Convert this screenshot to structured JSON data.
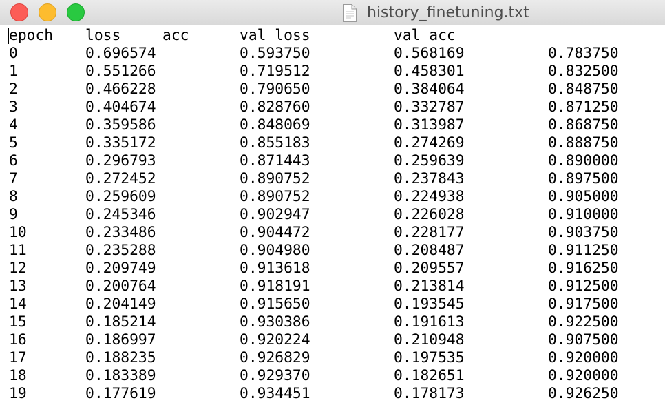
{
  "window": {
    "title": "history_finetuning.txt"
  },
  "table": {
    "headers": {
      "epoch": "epoch",
      "loss": "loss",
      "acc": "acc",
      "val_loss": "val_loss",
      "val_acc": "val_acc"
    },
    "rows": [
      [
        "0",
        "0.696574",
        "0.593750",
        "0.568169",
        "0.783750"
      ],
      [
        "1",
        "0.551266",
        "0.719512",
        "0.458301",
        "0.832500"
      ],
      [
        "2",
        "0.466228",
        "0.790650",
        "0.384064",
        "0.848750"
      ],
      [
        "3",
        "0.404674",
        "0.828760",
        "0.332787",
        "0.871250"
      ],
      [
        "4",
        "0.359586",
        "0.848069",
        "0.313987",
        "0.868750"
      ],
      [
        "5",
        "0.335172",
        "0.855183",
        "0.274269",
        "0.888750"
      ],
      [
        "6",
        "0.296793",
        "0.871443",
        "0.259639",
        "0.890000"
      ],
      [
        "7",
        "0.272452",
        "0.890752",
        "0.237843",
        "0.897500"
      ],
      [
        "8",
        "0.259609",
        "0.890752",
        "0.224938",
        "0.905000"
      ],
      [
        "9",
        "0.245346",
        "0.902947",
        "0.226028",
        "0.910000"
      ],
      [
        "10",
        "0.233486",
        "0.904472",
        "0.228177",
        "0.903750"
      ],
      [
        "11",
        "0.235288",
        "0.904980",
        "0.208487",
        "0.911250"
      ],
      [
        "12",
        "0.209749",
        "0.913618",
        "0.209557",
        "0.916250"
      ],
      [
        "13",
        "0.200764",
        "0.918191",
        "0.213814",
        "0.912500"
      ],
      [
        "14",
        "0.204149",
        "0.915650",
        "0.193545",
        "0.917500"
      ],
      [
        "15",
        "0.185214",
        "0.930386",
        "0.191613",
        "0.922500"
      ],
      [
        "16",
        "0.186997",
        "0.920224",
        "0.210948",
        "0.907500"
      ],
      [
        "17",
        "0.188235",
        "0.926829",
        "0.197535",
        "0.920000"
      ],
      [
        "18",
        "0.183389",
        "0.929370",
        "0.182651",
        "0.920000"
      ],
      [
        "19",
        "0.177619",
        "0.934451",
        "0.178173",
        "0.926250"
      ]
    ]
  },
  "icons": {
    "close": "close-button",
    "minimize": "minimize-button",
    "zoom": "zoom-button",
    "document": "document-icon"
  },
  "colors": {
    "close": "#fc5d57",
    "minimize": "#fdbc2f",
    "zoom": "#29c941"
  }
}
